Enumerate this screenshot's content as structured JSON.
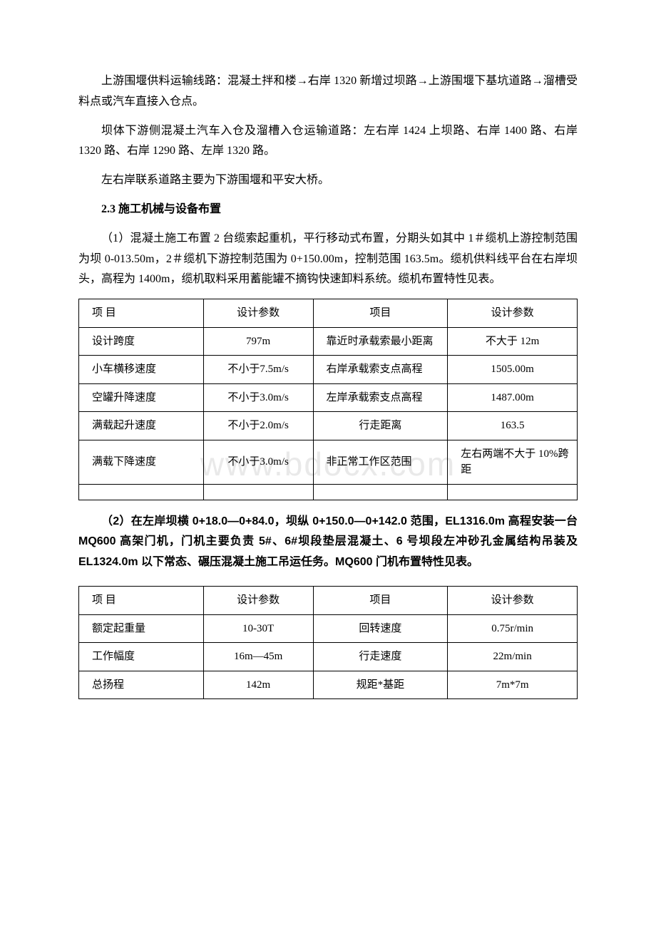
{
  "paragraphs": {
    "p1": "上游围堰供料运输线路：混凝土拌和楼→右岸 1320 新增过坝路→上游围堰下基坑道路→溜槽受料点或汽车直接入仓点。",
    "p2": "坝体下游侧混凝土汽车入仓及溜槽入仓运输道路：左右岸 1424 上坝路、右岸 1400 路、右岸 1320 路、右岸 1290 路、左岸 1320 路。",
    "p3": "左右岸联系道路主要为下游围堰和平安大桥。",
    "h1": "2.3 施工机械与设备布置",
    "p4": "（1）混凝土施工布置 2 台缆索起重机，平行移动式布置，分期头如其中 1＃缆机上游控制范围为坝 0-013.50m，2＃缆机下游控制范围为 0+150.00m，控制范围 163.5m。缆机供料线平台在右岸坝头，高程为 1400m，缆机取料采用蓄能罐不摘钩快速卸料系统。缆机布置特性见表。",
    "p5": "（2）在左岸坝横 0+18.0—0+84.0，坝纵 0+150.0—0+142.0 范围，EL1316.0m 高程安装一台 MQ600 高架门机，门机主要负责 5#、6#坝段垫层混凝土、6 号坝段左冲砂孔金属结构吊装及 EL1324.0m 以下常态、碾压混凝土施工吊运任务。MQ600 门机布置特性见表。"
  },
  "table1": {
    "headers": [
      "项 目",
      "设计参数",
      "项目",
      "设计参数"
    ],
    "rows": [
      [
        "设计跨度",
        "797m",
        "靠近时承载索最小距离",
        "不大于 12m"
      ],
      [
        "小车横移速度",
        "不小于7.5m/s",
        "右岸承载索支点高程",
        "1505.00m"
      ],
      [
        "空罐升降速度",
        "不小于3.0m/s",
        "左岸承载索支点高程",
        "1487.00m"
      ],
      [
        "满载起升速度",
        "不小于2.0m/s",
        "行走距离",
        "163.5"
      ],
      [
        "满载下降速度",
        "不小于3.0m/s",
        "非正常工作区范围",
        "左右两端不大于 10%跨距"
      ]
    ]
  },
  "table2": {
    "headers": [
      "项 目",
      "设计参数",
      "项目",
      "设计参数"
    ],
    "rows": [
      [
        "额定起重量",
        "10-30T",
        "回转速度",
        "0.75r/min"
      ],
      [
        "工作幅度",
        "16m—45m",
        "行走速度",
        "22m/min"
      ],
      [
        "总扬程",
        "142m",
        "规距*基距",
        "7m*7m"
      ]
    ]
  },
  "watermark": "www.bdocx.com"
}
